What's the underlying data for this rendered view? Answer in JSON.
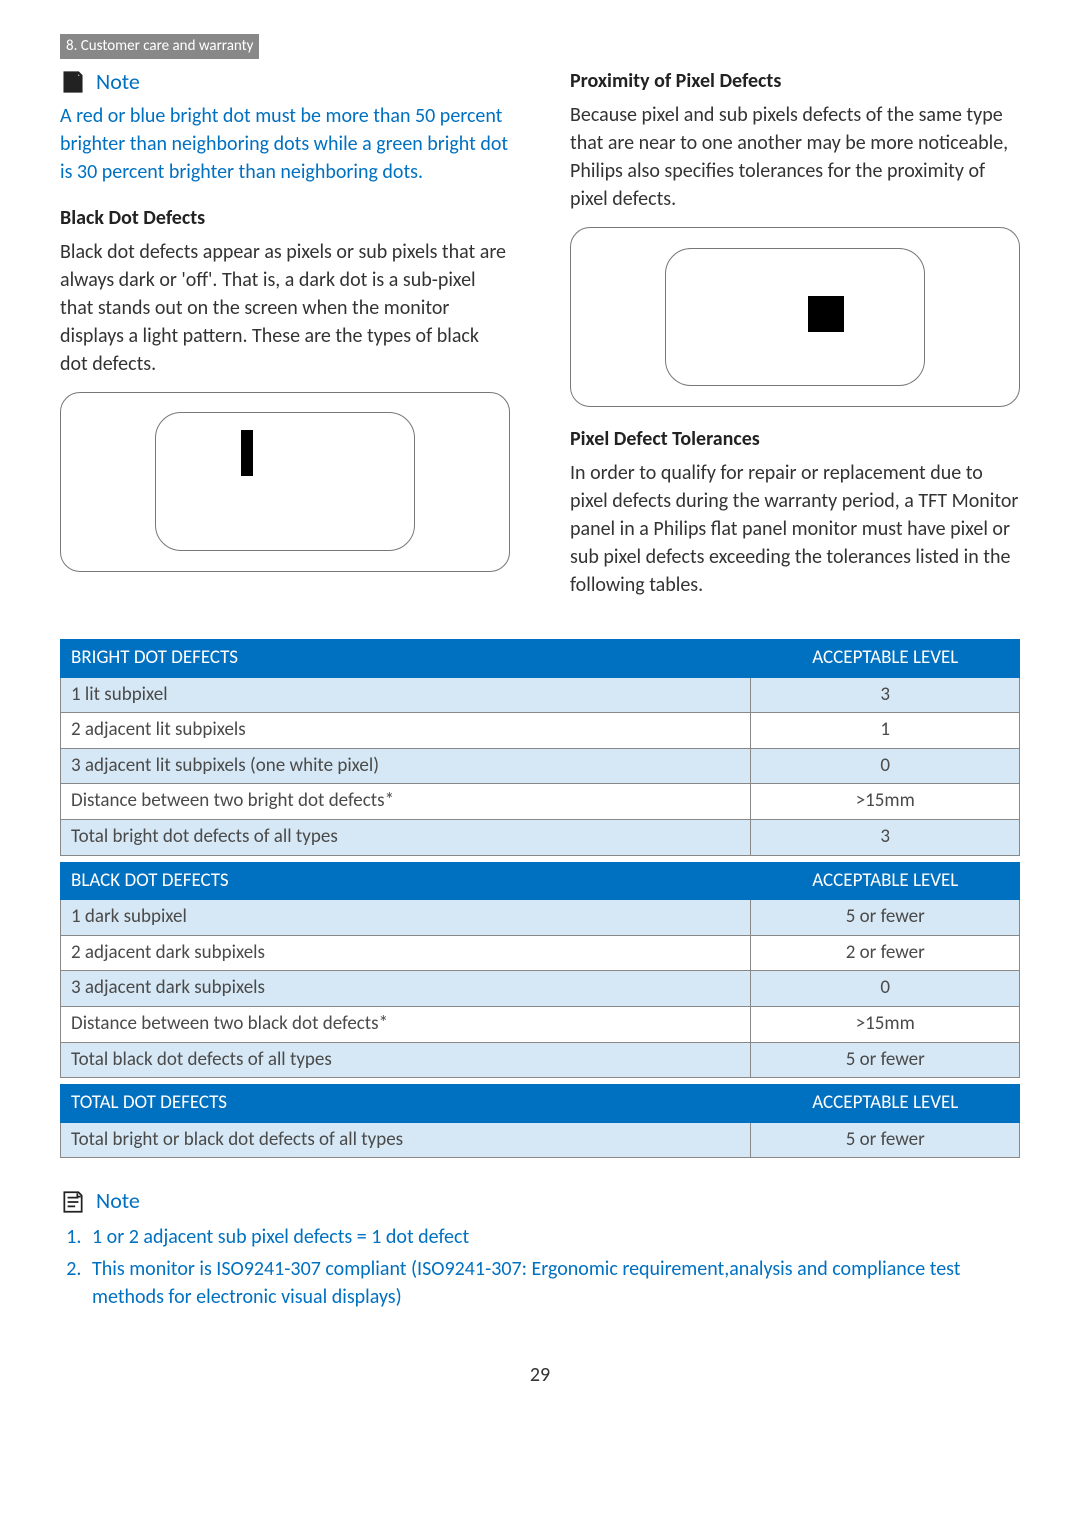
{
  "section_tag": "8. Customer care and warranty",
  "note1": {
    "label": "Note",
    "text": "A red or blue bright dot must be more than 50 percent brighter than neighboring dots while a green bright dot is 30 percent brighter than neighboring dots."
  },
  "left": {
    "heading": "Black Dot Defects",
    "text": "Black dot defects appear as pixels or sub pixels that are always dark or 'off'. That is, a dark dot is a sub-pixel that stands out on the screen when the monitor displays a light pattern. These are the types of black dot defects."
  },
  "right": {
    "heading1": "Proximity of Pixel Defects",
    "text1": "Because pixel and sub pixels defects of the same type that are near to one another may be more noticeable, Philips also specifies tolerances for the proximity of pixel defects.",
    "heading2": "Pixel Defect Tolerances",
    "text2": "In order to qualify for repair or replacement due to pixel defects during the warranty period, a TFT Monitor panel in a Philips flat panel monitor must have pixel or sub pixel defects exceeding the tolerances listed in the following tables."
  },
  "tables": [
    {
      "header": [
        "BRIGHT DOT DEFECTS",
        "ACCEPTABLE LEVEL"
      ],
      "rows": [
        [
          "1 lit subpixel",
          "3"
        ],
        [
          "2 adjacent lit subpixels",
          "1"
        ],
        [
          "3 adjacent lit subpixels (one white pixel)",
          "0"
        ],
        [
          "Distance between two bright dot defects*",
          ">15mm"
        ],
        [
          "Total bright dot defects of all types",
          "3"
        ]
      ]
    },
    {
      "header": [
        "BLACK DOT DEFECTS",
        "ACCEPTABLE LEVEL"
      ],
      "rows": [
        [
          "1 dark subpixel",
          "5 or fewer"
        ],
        [
          "2 adjacent dark subpixels",
          "2 or fewer"
        ],
        [
          "3 adjacent dark subpixels",
          "0"
        ],
        [
          "Distance between two black dot defects*",
          ">15mm"
        ],
        [
          "Total black dot defects of all types",
          "5 or fewer"
        ]
      ]
    },
    {
      "header": [
        "TOTAL DOT DEFECTS",
        "ACCEPTABLE LEVEL"
      ],
      "rows": [
        [
          "Total bright or black dot defects of all types",
          "5 or fewer"
        ]
      ]
    }
  ],
  "note2": {
    "label": "Note",
    "items": [
      "1 or 2 adjacent sub pixel defects = 1 dot defect",
      "This monitor is ISO9241-307 compliant (ISO9241-307: Ergonomic requirement,analysis and compliance test methods for electronic visual displays)"
    ]
  },
  "page_number": "29",
  "colors": {
    "accent": "#0070c0",
    "zebra": "#d6e8f5",
    "tag_bg": "#888888"
  }
}
